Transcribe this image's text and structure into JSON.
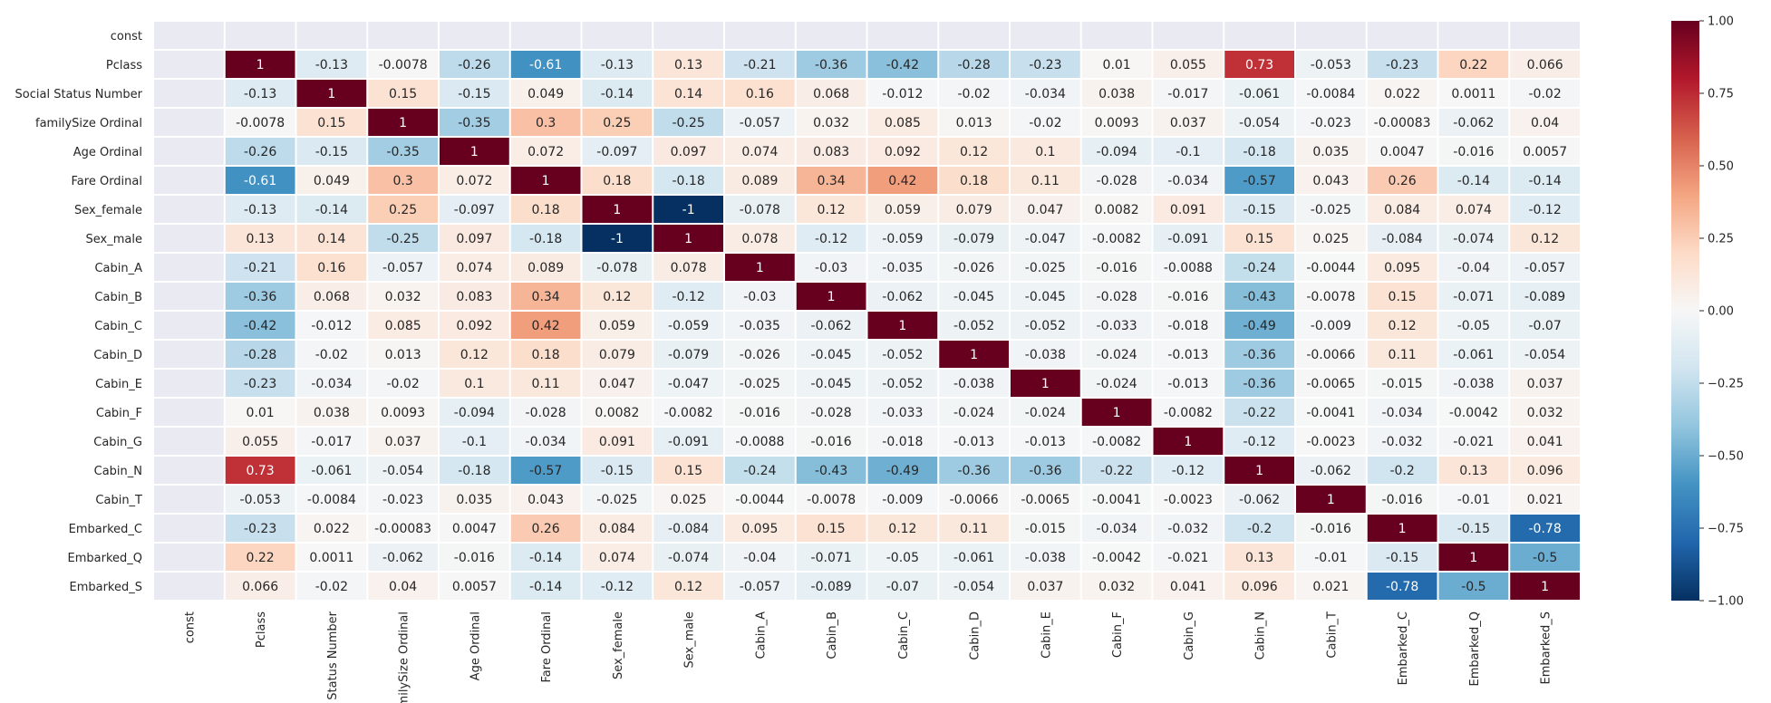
{
  "chart_data": {
    "type": "heatmap",
    "title": "",
    "xlabel": "",
    "ylabel": "",
    "variables": [
      "const",
      "Pclass",
      "Social Status Number",
      "familySize Ordinal",
      "Age Ordinal",
      "Fare Ordinal",
      "Sex_female",
      "Sex_male",
      "Cabin_A",
      "Cabin_B",
      "Cabin_C",
      "Cabin_D",
      "Cabin_E",
      "Cabin_F",
      "Cabin_G",
      "Cabin_N",
      "Cabin_T",
      "Embarked_C",
      "Embarked_Q",
      "Embarked_S"
    ],
    "row_labels": [
      "const",
      "Pclass",
      "Social Status Number",
      "familySize Ordinal",
      "Age Ordinal",
      "Fare Ordinal",
      "Sex_female",
      "Sex_male",
      "Cabin_A",
      "Cabin_B",
      "Cabin_C",
      "Cabin_D",
      "Cabin_E",
      "Cabin_F",
      "Cabin_G",
      "Cabin_N",
      "Cabin_T",
      "Embarked_C",
      "Embarked_Q",
      "Embarked_S"
    ],
    "col_labels": [
      "const",
      "Pclass",
      "Status Number",
      "milySize Ordinal",
      "Age Ordinal",
      "Fare Ordinal",
      "Sex_female",
      "Sex_male",
      "Cabin_A",
      "Cabin_B",
      "Cabin_C",
      "Cabin_D",
      "Cabin_E",
      "Cabin_F",
      "Cabin_G",
      "Cabin_N",
      "Cabin_T",
      "Embarked_C",
      "Embarked_Q",
      "Embarked_S"
    ],
    "values": [
      [
        null,
        null,
        null,
        null,
        null,
        null,
        null,
        null,
        null,
        null,
        null,
        null,
        null,
        null,
        null,
        null,
        null,
        null,
        null,
        null
      ],
      [
        null,
        1,
        -0.13,
        -0.0078,
        -0.26,
        -0.61,
        -0.13,
        0.13,
        -0.21,
        -0.36,
        -0.42,
        -0.28,
        -0.23,
        0.01,
        0.055,
        0.73,
        -0.053,
        -0.23,
        0.22,
        0.066
      ],
      [
        null,
        -0.13,
        1,
        0.15,
        -0.15,
        0.049,
        -0.14,
        0.14,
        0.16,
        0.068,
        -0.012,
        -0.02,
        -0.034,
        0.038,
        -0.017,
        -0.061,
        -0.0084,
        0.022,
        0.0011,
        -0.02
      ],
      [
        null,
        -0.0078,
        0.15,
        1,
        -0.35,
        0.3,
        0.25,
        -0.25,
        -0.057,
        0.032,
        0.085,
        0.013,
        -0.02,
        0.0093,
        0.037,
        -0.054,
        -0.023,
        -0.00083,
        -0.062,
        0.04
      ],
      [
        null,
        -0.26,
        -0.15,
        -0.35,
        1,
        0.072,
        -0.097,
        0.097,
        0.074,
        0.083,
        0.092,
        0.12,
        0.1,
        -0.094,
        -0.1,
        -0.18,
        0.035,
        0.0047,
        -0.016,
        0.0057
      ],
      [
        null,
        -0.61,
        0.049,
        0.3,
        0.072,
        1,
        0.18,
        -0.18,
        0.089,
        0.34,
        0.42,
        0.18,
        0.11,
        -0.028,
        -0.034,
        -0.57,
        0.043,
        0.26,
        -0.14,
        -0.14
      ],
      [
        null,
        -0.13,
        -0.14,
        0.25,
        -0.097,
        0.18,
        1,
        -1,
        -0.078,
        0.12,
        0.059,
        0.079,
        0.047,
        0.0082,
        0.091,
        -0.15,
        -0.025,
        0.084,
        0.074,
        -0.12
      ],
      [
        null,
        0.13,
        0.14,
        -0.25,
        0.097,
        -0.18,
        -1,
        1,
        0.078,
        -0.12,
        -0.059,
        -0.079,
        -0.047,
        -0.0082,
        -0.091,
        0.15,
        0.025,
        -0.084,
        -0.074,
        0.12
      ],
      [
        null,
        -0.21,
        0.16,
        -0.057,
        0.074,
        0.089,
        -0.078,
        0.078,
        1,
        -0.03,
        -0.035,
        -0.026,
        -0.025,
        -0.016,
        -0.0088,
        -0.24,
        -0.0044,
        0.095,
        -0.04,
        -0.057
      ],
      [
        null,
        -0.36,
        0.068,
        0.032,
        0.083,
        0.34,
        0.12,
        -0.12,
        -0.03,
        1,
        -0.062,
        -0.045,
        -0.045,
        -0.028,
        -0.016,
        -0.43,
        -0.0078,
        0.15,
        -0.071,
        -0.089
      ],
      [
        null,
        -0.42,
        -0.012,
        0.085,
        0.092,
        0.42,
        0.059,
        -0.059,
        -0.035,
        -0.062,
        1,
        -0.052,
        -0.052,
        -0.033,
        -0.018,
        -0.49,
        -0.009,
        0.12,
        -0.05,
        -0.07
      ],
      [
        null,
        -0.28,
        -0.02,
        0.013,
        0.12,
        0.18,
        0.079,
        -0.079,
        -0.026,
        -0.045,
        -0.052,
        1,
        -0.038,
        -0.024,
        -0.013,
        -0.36,
        -0.0066,
        0.11,
        -0.061,
        -0.054
      ],
      [
        null,
        -0.23,
        -0.034,
        -0.02,
        0.1,
        0.11,
        0.047,
        -0.047,
        -0.025,
        -0.045,
        -0.052,
        -0.038,
        1,
        -0.024,
        -0.013,
        -0.36,
        -0.0065,
        -0.015,
        -0.038,
        0.037
      ],
      [
        null,
        0.01,
        0.038,
        0.0093,
        -0.094,
        -0.028,
        0.0082,
        -0.0082,
        -0.016,
        -0.028,
        -0.033,
        -0.024,
        -0.024,
        1,
        -0.0082,
        -0.22,
        -0.0041,
        -0.034,
        -0.0042,
        0.032
      ],
      [
        null,
        0.055,
        -0.017,
        0.037,
        -0.1,
        -0.034,
        0.091,
        -0.091,
        -0.0088,
        -0.016,
        -0.018,
        -0.013,
        -0.013,
        -0.0082,
        1,
        -0.12,
        -0.0023,
        -0.032,
        -0.021,
        0.041
      ],
      [
        null,
        0.73,
        -0.061,
        -0.054,
        -0.18,
        -0.57,
        -0.15,
        0.15,
        -0.24,
        -0.43,
        -0.49,
        -0.36,
        -0.36,
        -0.22,
        -0.12,
        1,
        -0.062,
        -0.2,
        0.13,
        0.096
      ],
      [
        null,
        -0.053,
        -0.0084,
        -0.023,
        0.035,
        0.043,
        -0.025,
        0.025,
        -0.0044,
        -0.0078,
        -0.009,
        -0.0066,
        -0.0065,
        -0.0041,
        -0.0023,
        -0.062,
        1,
        -0.016,
        -0.01,
        0.021
      ],
      [
        null,
        -0.23,
        0.022,
        -0.00083,
        0.0047,
        0.26,
        0.084,
        -0.084,
        0.095,
        0.15,
        0.12,
        0.11,
        -0.015,
        -0.034,
        -0.032,
        -0.2,
        -0.016,
        1,
        -0.15,
        -0.78
      ],
      [
        null,
        0.22,
        0.0011,
        -0.062,
        -0.016,
        -0.14,
        0.074,
        -0.074,
        -0.04,
        -0.071,
        -0.05,
        -0.061,
        -0.038,
        -0.0042,
        -0.021,
        0.13,
        -0.01,
        -0.15,
        1,
        -0.5
      ],
      [
        null,
        0.066,
        -0.02,
        0.04,
        0.0057,
        -0.14,
        -0.12,
        0.12,
        -0.057,
        -0.089,
        -0.07,
        -0.054,
        0.037,
        0.032,
        0.041,
        0.096,
        0.021,
        -0.78,
        -0.5,
        1
      ]
    ],
    "colorbar": {
      "range": [
        -1,
        1
      ],
      "ticks": [
        "1.00",
        "0.75",
        "0.50",
        "0.25",
        "0.00",
        "−0.25",
        "−0.50",
        "−0.75",
        "−1.00"
      ],
      "colormap": "RdBu_r",
      "stops": [
        "#053061",
        "#2166ac",
        "#4393c3",
        "#92c5de",
        "#d1e5f0",
        "#f7f7f7",
        "#fddbc7",
        "#f4a582",
        "#d6604d",
        "#b2182b",
        "#67001f"
      ]
    },
    "missing_color": "#eaeaf2",
    "grid": false,
    "annotations": true
  }
}
